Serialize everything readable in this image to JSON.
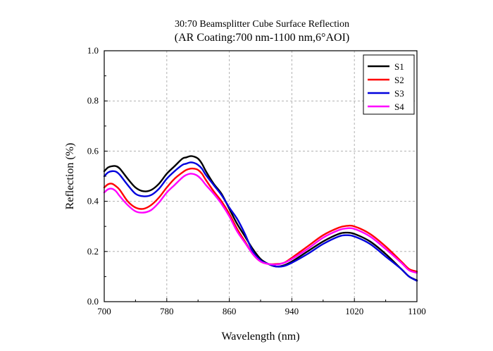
{
  "chart_data": {
    "type": "line",
    "title": "30:70 Beamsplitter Cube Surface Reflection",
    "subtitle": "(AR Coating:700 nm-1100 nm,6°AOI)",
    "xlabel": "Wavelength (nm)",
    "ylabel": "Reflection (%)",
    "xlim": [
      700,
      1100
    ],
    "ylim": [
      0,
      1.0
    ],
    "xticks": [
      700,
      780,
      860,
      940,
      1020,
      1100
    ],
    "yticks": [
      0.0,
      0.2,
      0.4,
      0.6,
      0.8,
      1.0
    ],
    "xtick_labels": [
      "700",
      "780",
      "860",
      "940",
      "1020",
      "1100"
    ],
    "ytick_labels": [
      "0.0",
      "0.2",
      "0.4",
      "0.6",
      "0.8",
      "1.0"
    ],
    "grid": true,
    "legend_position": "top-right",
    "series": [
      {
        "name": "S1",
        "color": "#000000",
        "x": [
          700,
          705,
          710,
          715,
          720,
          730,
          740,
          750,
          760,
          770,
          780,
          790,
          800,
          805,
          810,
          815,
          820,
          825,
          830,
          840,
          850,
          860,
          870,
          880,
          890,
          900,
          910,
          920,
          930,
          940,
          960,
          980,
          1000,
          1010,
          1020,
          1040,
          1060,
          1080,
          1090,
          1100
        ],
        "y": [
          0.52,
          0.535,
          0.54,
          0.54,
          0.53,
          0.49,
          0.455,
          0.44,
          0.445,
          0.47,
          0.51,
          0.54,
          0.57,
          0.575,
          0.58,
          0.578,
          0.57,
          0.55,
          0.52,
          0.47,
          0.43,
          0.37,
          0.31,
          0.26,
          0.21,
          0.17,
          0.15,
          0.14,
          0.145,
          0.16,
          0.2,
          0.24,
          0.27,
          0.275,
          0.27,
          0.24,
          0.19,
          0.13,
          0.1,
          0.085
        ]
      },
      {
        "name": "S2",
        "color": "#ff0000",
        "x": [
          700,
          705,
          710,
          715,
          720,
          730,
          740,
          750,
          760,
          770,
          780,
          790,
          800,
          805,
          810,
          815,
          820,
          825,
          830,
          840,
          850,
          860,
          870,
          880,
          890,
          900,
          910,
          920,
          930,
          940,
          960,
          980,
          1000,
          1010,
          1020,
          1040,
          1060,
          1080,
          1090,
          1100
        ],
        "y": [
          0.455,
          0.468,
          0.47,
          0.46,
          0.445,
          0.4,
          0.375,
          0.37,
          0.385,
          0.415,
          0.455,
          0.49,
          0.515,
          0.525,
          0.53,
          0.53,
          0.525,
          0.51,
          0.485,
          0.44,
          0.4,
          0.35,
          0.29,
          0.24,
          0.19,
          0.16,
          0.15,
          0.15,
          0.155,
          0.175,
          0.22,
          0.265,
          0.295,
          0.302,
          0.3,
          0.27,
          0.22,
          0.16,
          0.13,
          0.12
        ]
      },
      {
        "name": "S3",
        "color": "#0000dd",
        "x": [
          700,
          705,
          710,
          715,
          720,
          730,
          740,
          750,
          760,
          770,
          780,
          790,
          800,
          805,
          810,
          815,
          820,
          825,
          830,
          840,
          850,
          860,
          870,
          880,
          890,
          900,
          910,
          920,
          930,
          940,
          960,
          980,
          1000,
          1010,
          1020,
          1040,
          1060,
          1080,
          1090,
          1100
        ],
        "y": [
          0.5,
          0.515,
          0.52,
          0.518,
          0.505,
          0.465,
          0.43,
          0.42,
          0.425,
          0.45,
          0.49,
          0.52,
          0.545,
          0.55,
          0.555,
          0.553,
          0.545,
          0.53,
          0.505,
          0.465,
          0.425,
          0.375,
          0.33,
          0.27,
          0.2,
          0.165,
          0.15,
          0.14,
          0.142,
          0.155,
          0.19,
          0.23,
          0.26,
          0.265,
          0.26,
          0.23,
          0.18,
          0.13,
          0.1,
          0.083
        ]
      },
      {
        "name": "S4",
        "color": "#ff00ff",
        "x": [
          700,
          705,
          710,
          715,
          720,
          730,
          740,
          750,
          760,
          770,
          780,
          790,
          800,
          805,
          810,
          815,
          820,
          825,
          830,
          840,
          850,
          860,
          870,
          880,
          890,
          900,
          910,
          920,
          930,
          940,
          960,
          980,
          1000,
          1010,
          1020,
          1040,
          1060,
          1080,
          1090,
          1100
        ],
        "y": [
          0.435,
          0.448,
          0.45,
          0.44,
          0.42,
          0.385,
          0.36,
          0.355,
          0.365,
          0.395,
          0.435,
          0.465,
          0.495,
          0.505,
          0.51,
          0.508,
          0.5,
          0.485,
          0.465,
          0.43,
          0.39,
          0.34,
          0.28,
          0.235,
          0.19,
          0.16,
          0.15,
          0.148,
          0.155,
          0.17,
          0.21,
          0.255,
          0.285,
          0.292,
          0.29,
          0.26,
          0.21,
          0.155,
          0.125,
          0.115
        ]
      }
    ]
  }
}
